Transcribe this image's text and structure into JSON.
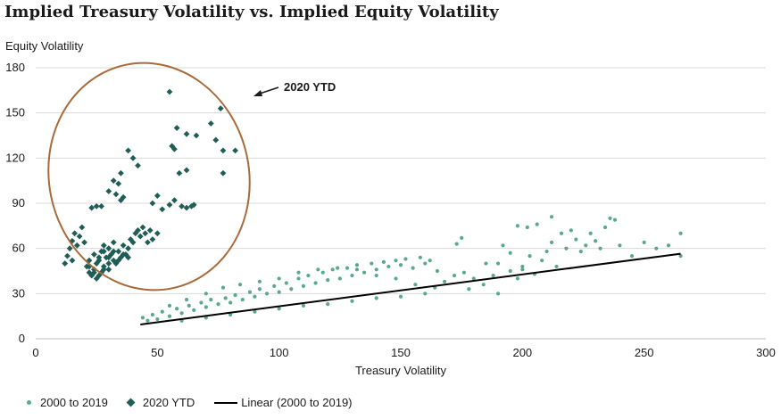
{
  "chart_data": {
    "type": "scatter",
    "title": "Implied Treasury Volatility vs. Implied Equity Volatility",
    "xlabel": "Treasury Volatility",
    "ylabel": "Equity Volatility",
    "xlim": [
      0,
      300
    ],
    "ylim": [
      0,
      180
    ],
    "x_ticks": [
      "0",
      "50",
      "100",
      "150",
      "200",
      "250",
      "300"
    ],
    "y_ticks": [
      "0",
      "30",
      "60",
      "90",
      "120",
      "150",
      "180"
    ],
    "grid": "horizontal",
    "legend_position": "bottom-left",
    "annotation": "2020 YTD",
    "colors": {
      "s2000": "#5aa88e",
      "s2020": "#1f5e57",
      "linear": "#000000",
      "ellipse": "#a86a3a"
    },
    "series": [
      {
        "name": "2000 to 2019",
        "marker": "dot",
        "points": [
          [
            44,
            14
          ],
          [
            46,
            12
          ],
          [
            48,
            16
          ],
          [
            50,
            13
          ],
          [
            52,
            18
          ],
          [
            55,
            15
          ],
          [
            58,
            20
          ],
          [
            60,
            17
          ],
          [
            63,
            22
          ],
          [
            65,
            19
          ],
          [
            68,
            24
          ],
          [
            70,
            21
          ],
          [
            72,
            26
          ],
          [
            75,
            23
          ],
          [
            78,
            27
          ],
          [
            80,
            24
          ],
          [
            82,
            29
          ],
          [
            85,
            26
          ],
          [
            88,
            31
          ],
          [
            90,
            28
          ],
          [
            92,
            33
          ],
          [
            95,
            30
          ],
          [
            98,
            35
          ],
          [
            100,
            31
          ],
          [
            103,
            37
          ],
          [
            105,
            33
          ],
          [
            108,
            40
          ],
          [
            110,
            35
          ],
          [
            112,
            42
          ],
          [
            115,
            37
          ],
          [
            118,
            44
          ],
          [
            120,
            39
          ],
          [
            122,
            46
          ],
          [
            125,
            40
          ],
          [
            128,
            47
          ],
          [
            130,
            42
          ],
          [
            132,
            49
          ],
          [
            135,
            44
          ],
          [
            138,
            50
          ],
          [
            140,
            46
          ],
          [
            143,
            51
          ],
          [
            145,
            48
          ],
          [
            148,
            52
          ],
          [
            150,
            49
          ],
          [
            152,
            53
          ],
          [
            155,
            47
          ],
          [
            158,
            54
          ],
          [
            160,
            50
          ],
          [
            162,
            52
          ],
          [
            165,
            45
          ],
          [
            55,
            22
          ],
          [
            62,
            26
          ],
          [
            70,
            30
          ],
          [
            77,
            34
          ],
          [
            84,
            36
          ],
          [
            92,
            38
          ],
          [
            100,
            40
          ],
          [
            108,
            44
          ],
          [
            116,
            46
          ],
          [
            124,
            47
          ],
          [
            132,
            46
          ],
          [
            140,
            42
          ],
          [
            148,
            40
          ],
          [
            156,
            36
          ],
          [
            164,
            34
          ],
          [
            60,
            12
          ],
          [
            70,
            14
          ],
          [
            80,
            16
          ],
          [
            90,
            18
          ],
          [
            100,
            20
          ],
          [
            110,
            22
          ],
          [
            120,
            23
          ],
          [
            130,
            25
          ],
          [
            140,
            27
          ],
          [
            150,
            28
          ],
          [
            160,
            30
          ],
          [
            168,
            38
          ],
          [
            172,
            42
          ],
          [
            176,
            44
          ],
          [
            178,
            33
          ],
          [
            180,
            40
          ],
          [
            184,
            36
          ],
          [
            188,
            42
          ],
          [
            190,
            50
          ],
          [
            192,
            62
          ],
          [
            195,
            45
          ],
          [
            198,
            40
          ],
          [
            200,
            48
          ],
          [
            203,
            55
          ],
          [
            205,
            43
          ],
          [
            208,
            52
          ],
          [
            210,
            58
          ],
          [
            212,
            64
          ],
          [
            214,
            48
          ],
          [
            216,
            70
          ],
          [
            218,
            60
          ],
          [
            220,
            72
          ],
          [
            222,
            66
          ],
          [
            224,
            58
          ],
          [
            226,
            62
          ],
          [
            228,
            70
          ],
          [
            230,
            65
          ],
          [
            232,
            60
          ],
          [
            234,
            74
          ],
          [
            236,
            80
          ],
          [
            238,
            79
          ],
          [
            240,
            62
          ],
          [
            245,
            55
          ],
          [
            250,
            64
          ],
          [
            255,
            60
          ],
          [
            260,
            62
          ],
          [
            265,
            70
          ],
          [
            265,
            55
          ],
          [
            173,
            63
          ],
          [
            175,
            67
          ],
          [
            185,
            50
          ],
          [
            190,
            30
          ],
          [
            195,
            57
          ],
          [
            198,
            75
          ],
          [
            200,
            46
          ],
          [
            206,
            76
          ],
          [
            212,
            81
          ],
          [
            202,
            74
          ]
        ]
      },
      {
        "name": "2020 YTD",
        "marker": "diamond",
        "points": [
          [
            12,
            50
          ],
          [
            13,
            55
          ],
          [
            14,
            60
          ],
          [
            15,
            65
          ],
          [
            15,
            52
          ],
          [
            16,
            70
          ],
          [
            17,
            62
          ],
          [
            18,
            68
          ],
          [
            19,
            74
          ],
          [
            20,
            64
          ],
          [
            21,
            48
          ],
          [
            22,
            44
          ],
          [
            23,
            42
          ],
          [
            24,
            46
          ],
          [
            25,
            50
          ],
          [
            25,
            40
          ],
          [
            26,
            52
          ],
          [
            27,
            44
          ],
          [
            27,
            58
          ],
          [
            28,
            48
          ],
          [
            28,
            62
          ],
          [
            29,
            54
          ],
          [
            30,
            46
          ],
          [
            30,
            60
          ],
          [
            31,
            56
          ],
          [
            32,
            52
          ],
          [
            32,
            64
          ],
          [
            33,
            50
          ],
          [
            34,
            58
          ],
          [
            35,
            54
          ],
          [
            36,
            62
          ],
          [
            37,
            56
          ],
          [
            38,
            60
          ],
          [
            39,
            66
          ],
          [
            40,
            64
          ],
          [
            41,
            70
          ],
          [
            42,
            72
          ],
          [
            43,
            68
          ],
          [
            44,
            74
          ],
          [
            45,
            70
          ],
          [
            46,
            64
          ],
          [
            47,
            72
          ],
          [
            48,
            66
          ],
          [
            50,
            70
          ],
          [
            22,
            48
          ],
          [
            24,
            44
          ],
          [
            26,
            42
          ],
          [
            28,
            46
          ],
          [
            30,
            50
          ],
          [
            22,
            52
          ],
          [
            24,
            56
          ],
          [
            26,
            54
          ],
          [
            28,
            58
          ],
          [
            30,
            54
          ],
          [
            32,
            58
          ],
          [
            34,
            52
          ],
          [
            36,
            56
          ],
          [
            38,
            54
          ],
          [
            23,
            87
          ],
          [
            25,
            88
          ],
          [
            27,
            88
          ],
          [
            30,
            98
          ],
          [
            32,
            105
          ],
          [
            34,
            103
          ],
          [
            35,
            110
          ],
          [
            38,
            125
          ],
          [
            40,
            120
          ],
          [
            42,
            115
          ],
          [
            35,
            92
          ],
          [
            33,
            96
          ],
          [
            36,
            94
          ],
          [
            48,
            90
          ],
          [
            50,
            95
          ],
          [
            52,
            86
          ],
          [
            55,
            89
          ],
          [
            57,
            92
          ],
          [
            60,
            88
          ],
          [
            62,
            87
          ],
          [
            64,
            88
          ],
          [
            65,
            89
          ],
          [
            55,
            164
          ],
          [
            56,
            128
          ],
          [
            57,
            126
          ],
          [
            58,
            140
          ],
          [
            59,
            110
          ],
          [
            62,
            136
          ],
          [
            62,
            112
          ],
          [
            66,
            135
          ],
          [
            72,
            143
          ],
          [
            74,
            132
          ],
          [
            76,
            153
          ],
          [
            77,
            125
          ],
          [
            77,
            110
          ],
          [
            82,
            125
          ]
        ]
      },
      {
        "name": "Linear (2000 to 2019)",
        "marker": "line",
        "points": [
          [
            43,
            9.5
          ],
          [
            265,
            56.5
          ]
        ]
      }
    ]
  }
}
